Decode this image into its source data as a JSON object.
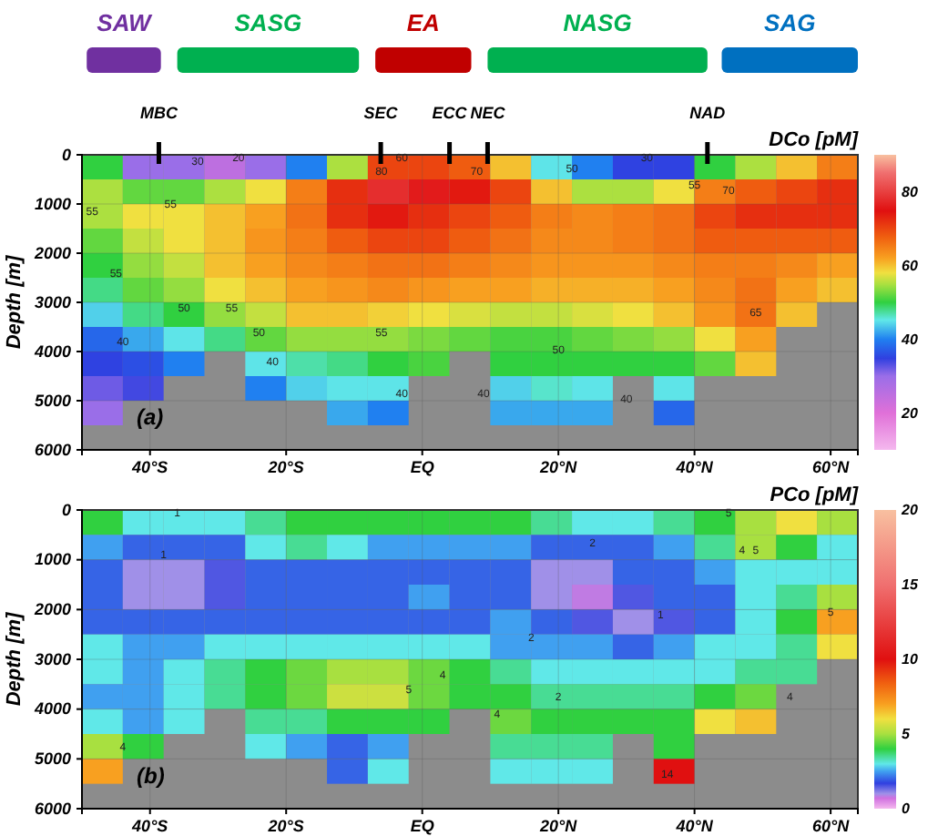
{
  "chart_data": [
    {
      "type": "heatmap",
      "ylabel": "Depth [m]",
      "clabel": "DCo [pM]",
      "x": [
        -47,
        -41,
        -35,
        -29,
        -23,
        -17,
        -11,
        -5,
        1,
        7,
        13,
        19,
        25,
        31,
        37,
        43,
        49,
        55,
        61
      ],
      "y": [
        250,
        750,
        1250,
        1750,
        2250,
        2750,
        3250,
        3750,
        4250,
        4750,
        5250
      ],
      "cells": [
        [
          50,
          30,
          30,
          25,
          30,
          40,
          55,
          70,
          70,
          68,
          60,
          45,
          40,
          35,
          35,
          50,
          55,
          60,
          65
        ],
        [
          55,
          52,
          52,
          55,
          58,
          65,
          72,
          78,
          76,
          74,
          70,
          60,
          55,
          55,
          58,
          65,
          68,
          70,
          72
        ],
        [
          55,
          58,
          58,
          60,
          62,
          66,
          72,
          74,
          72,
          70,
          68,
          65,
          64,
          65,
          66,
          70,
          72,
          72,
          72
        ],
        [
          52,
          56,
          58,
          60,
          63,
          65,
          68,
          70,
          70,
          68,
          66,
          64,
          64,
          65,
          66,
          68,
          68,
          68,
          68
        ],
        [
          50,
          54,
          56,
          60,
          62,
          64,
          65,
          66,
          66,
          65,
          64,
          63,
          63,
          63,
          64,
          65,
          65,
          64,
          62
        ],
        [
          48,
          52,
          54,
          58,
          60,
          62,
          63,
          64,
          63,
          62,
          62,
          61,
          61,
          61,
          62,
          64,
          66,
          62,
          60
        ],
        [
          44,
          48,
          50,
          54,
          56,
          60,
          60,
          59,
          58,
          57,
          56,
          56,
          57,
          58,
          60,
          63,
          66,
          60,
          null
        ],
        [
          38,
          42,
          45,
          48,
          52,
          54,
          54,
          54,
          53,
          52,
          51,
          51,
          52,
          53,
          54,
          58,
          62,
          null,
          null
        ],
        [
          35,
          36,
          40,
          null,
          45,
          47,
          48,
          50,
          51,
          null,
          50,
          50,
          50,
          50,
          50,
          52,
          60,
          null,
          null
        ],
        [
          32,
          34,
          null,
          null,
          40,
          44,
          45,
          45,
          null,
          null,
          44,
          46,
          45,
          null,
          45,
          null,
          null,
          null,
          null
        ],
        [
          30,
          null,
          null,
          null,
          null,
          null,
          42,
          40,
          null,
          null,
          42,
          42,
          42,
          null,
          38,
          null,
          null,
          null,
          null
        ]
      ],
      "xlim": [
        -50,
        64
      ],
      "ylim": [
        6000,
        0
      ],
      "xticks": [
        {
          "value": -40,
          "label": "40°S"
        },
        {
          "value": -20,
          "label": "20°S"
        },
        {
          "value": 0,
          "label": "EQ"
        },
        {
          "value": 20,
          "label": "20°N"
        },
        {
          "value": 40,
          "label": "40°N"
        },
        {
          "value": 60,
          "label": "60°N"
        }
      ],
      "yticks": [
        0,
        1000,
        2000,
        3000,
        4000,
        5000,
        6000
      ],
      "clim": [
        10,
        90
      ],
      "cticks": [
        20,
        40,
        60,
        80
      ],
      "grid": true,
      "ref_lines": [
        {
          "axis": "x",
          "value": -38.7,
          "label": "MBC"
        },
        {
          "axis": "x",
          "value": -6.1,
          "label": "SEC"
        },
        {
          "axis": "x",
          "value": 4,
          "label": "ECC"
        },
        {
          "axis": "x",
          "value": 9.6,
          "label": "NEC"
        },
        {
          "axis": "x",
          "value": 41.9,
          "label": "NAD"
        }
      ],
      "annotations": [
        "(a)",
        "SAW",
        "SASG",
        "EA",
        "NASG",
        "SAG",
        "30",
        "20",
        "80",
        "60",
        "70",
        "50",
        "30",
        "55",
        "70",
        "55",
        "55",
        "55",
        "50",
        "55",
        "50",
        "40",
        "40",
        "55",
        "50",
        "65",
        "40",
        "40",
        "40"
      ]
    },
    {
      "type": "heatmap",
      "ylabel": "Depth [m]",
      "clabel": "PCo [pM]",
      "x": [
        -47,
        -41,
        -35,
        -29,
        -23,
        -17,
        -11,
        -5,
        1,
        7,
        13,
        19,
        25,
        31,
        37,
        43,
        49,
        55,
        61
      ],
      "y": [
        250,
        750,
        1250,
        1750,
        2250,
        2750,
        3250,
        3750,
        4250,
        4750,
        5250
      ],
      "cells": [
        [
          4,
          3,
          3,
          3,
          3.5,
          4,
          4,
          4,
          4,
          4,
          4,
          3.5,
          3,
          3,
          3.5,
          4,
          5,
          6,
          5
        ],
        [
          2.5,
          2,
          2,
          2,
          3,
          3.5,
          3,
          2.5,
          2.5,
          2.5,
          2.5,
          2,
          2,
          2,
          2.5,
          3.5,
          5,
          4,
          3
        ],
        [
          2,
          1,
          1,
          1.5,
          2,
          2,
          2,
          2,
          2,
          2,
          2,
          1,
          1,
          2,
          2,
          2.5,
          3,
          3,
          3
        ],
        [
          2,
          1,
          1,
          1.5,
          2,
          2,
          2,
          2,
          2.5,
          2,
          2,
          1,
          0.8,
          1.5,
          2,
          2,
          3,
          3.5,
          5
        ],
        [
          2,
          2,
          2,
          2,
          2,
          2,
          2,
          2,
          2,
          2,
          2.5,
          2,
          1.5,
          1,
          1.5,
          2,
          3,
          4,
          7
        ],
        [
          3,
          2.5,
          2.5,
          3,
          3,
          3,
          3,
          3,
          3,
          3,
          2.5,
          2.5,
          2.5,
          2,
          2.5,
          3,
          3,
          3.5,
          6
        ],
        [
          3,
          2.5,
          3,
          3.5,
          4,
          4.5,
          5,
          5,
          4.5,
          4,
          3.5,
          3,
          3,
          3,
          3,
          3,
          3.5,
          3.5,
          null
        ],
        [
          2.5,
          2.5,
          3,
          3.5,
          4,
          4.5,
          5.5,
          5.5,
          4.5,
          4,
          4,
          3.5,
          3.5,
          3.5,
          3.5,
          4,
          4.5,
          null,
          null
        ],
        [
          3,
          2.5,
          3,
          null,
          3.5,
          3.5,
          4,
          4,
          4,
          null,
          4.5,
          4,
          4,
          4,
          4,
          6,
          6.5,
          null,
          null
        ],
        [
          5,
          4,
          null,
          null,
          3,
          2.5,
          2,
          2.5,
          null,
          null,
          3.5,
          3.5,
          3.5,
          null,
          4,
          null,
          null,
          null,
          null
        ],
        [
          7,
          null,
          null,
          null,
          null,
          null,
          2,
          3,
          null,
          null,
          3,
          3,
          3,
          null,
          10,
          null,
          null,
          null,
          null
        ]
      ],
      "xlim": [
        -50,
        64
      ],
      "ylim": [
        6000,
        0
      ],
      "xticks": [
        {
          "value": -40,
          "label": "40°S"
        },
        {
          "value": -20,
          "label": "20°S"
        },
        {
          "value": 0,
          "label": "EQ"
        },
        {
          "value": 20,
          "label": "20°N"
        },
        {
          "value": 40,
          "label": "40°N"
        },
        {
          "value": 60,
          "label": "60°N"
        }
      ],
      "yticks": [
        0,
        1000,
        2000,
        3000,
        4000,
        5000,
        6000
      ],
      "clim": [
        0,
        20
      ],
      "cticks": [
        0,
        5,
        10,
        15,
        20
      ],
      "grid": true,
      "annotations": [
        "(b)",
        "1",
        "1",
        "2",
        "5",
        "4",
        "5",
        "1",
        "2",
        "5",
        "4",
        "2",
        "4",
        "4",
        "4",
        "5",
        "14"
      ]
    }
  ]
}
